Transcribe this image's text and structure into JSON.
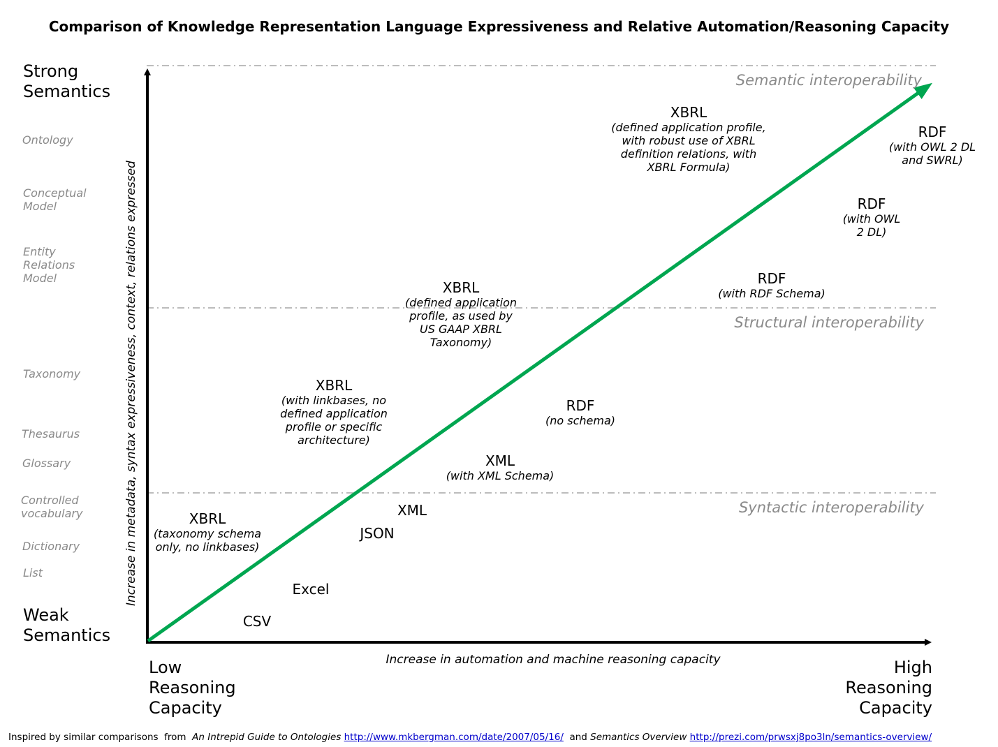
{
  "title": "Comparison of Knowledge Representation Language Expressiveness and Relative Automation/Reasoning Capacity",
  "y_axis": {
    "label": "Increase in metadata, syntax expressiveness, context, relations expressed",
    "top": [
      "Strong",
      "Semantics"
    ],
    "bottom": [
      "Weak",
      "Semantics"
    ],
    "scale": [
      [
        "Ontology"
      ],
      [
        "Conceptual",
        "Model"
      ],
      [
        "Entity",
        "Relations",
        "Model"
      ],
      [
        "Taxonomy"
      ],
      [
        "Thesaurus"
      ],
      [
        "Glossary"
      ],
      [
        "Controlled",
        "vocabulary"
      ],
      [
        "Dictionary"
      ],
      [
        "List"
      ]
    ]
  },
  "x_axis": {
    "label": "Increase in automation and machine reasoning capacity",
    "left": [
      "Low",
      "Reasoning",
      "Capacity"
    ],
    "right": [
      "High",
      "Reasoning",
      "Capacity"
    ]
  },
  "zones": {
    "semantic": "Semantic interoperability",
    "structural": "Structural interoperability",
    "syntactic": "Syntactic interoperability"
  },
  "items": {
    "csv": {
      "name": "CSV",
      "desc": []
    },
    "excel": {
      "name": "Excel",
      "desc": []
    },
    "json": {
      "name": "JSON",
      "desc": []
    },
    "xml": {
      "name": "XML",
      "desc": []
    },
    "xml_schema": {
      "name": "XML",
      "desc": [
        "(with XML Schema)"
      ]
    },
    "rdf_noschema": {
      "name": "RDF",
      "desc": [
        "(no schema)"
      ]
    },
    "rdf_rdfs": {
      "name": "RDF",
      "desc": [
        "(with RDF Schema)"
      ]
    },
    "rdf_owl": {
      "name": "RDF",
      "desc": [
        "(with OWL",
        "2 DL)"
      ]
    },
    "rdf_owl_swrl": {
      "name": "RDF",
      "desc": [
        "(with OWL 2 DL",
        "and SWRL)"
      ]
    },
    "xbrl_taxonomy": {
      "name": "XBRL",
      "desc": [
        "(taxonomy schema",
        "only, no linkbases)"
      ]
    },
    "xbrl_linkbases": {
      "name": "XBRL",
      "desc": [
        "(with linkbases, no",
        "defined application",
        "profile or specific",
        "architecture)"
      ]
    },
    "xbrl_usgaap": {
      "name": "XBRL",
      "desc": [
        "(defined application",
        "profile, as used by",
        "US GAAP XBRL",
        "Taxonomy)"
      ]
    },
    "xbrl_formula": {
      "name": "XBRL",
      "desc": [
        "(defined application profile,",
        "with robust use of XBRL",
        "definition relations, with",
        "XBRL Formula)"
      ]
    }
  },
  "footer": {
    "prefix": "Inspired by similar comparisons  from ",
    "source1": "An Intrepid Guide to Ontologies",
    "link1": "http://www.mkbergman.com/date/2007/05/16/",
    "middle": "  and ",
    "source2": "Semantics Overview",
    "link2": "http://prezi.com/prwsxj8po3ln/semantics-overview/"
  },
  "colors": {
    "trend_arrow": "#00a650",
    "zone_line": "#a6a6a6",
    "muted_text": "#8a8a8a",
    "axis": "#000000",
    "link": "#0000cc"
  }
}
